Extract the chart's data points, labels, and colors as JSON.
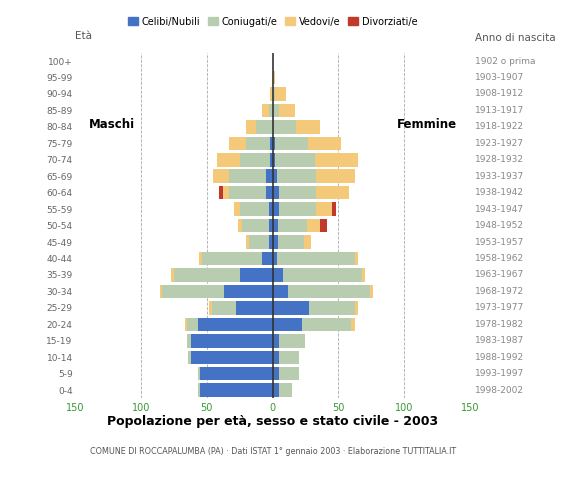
{
  "age_groups": [
    "0-4",
    "5-9",
    "10-14",
    "15-19",
    "20-24",
    "25-29",
    "30-34",
    "35-39",
    "40-44",
    "45-49",
    "50-54",
    "55-59",
    "60-64",
    "65-69",
    "70-74",
    "75-79",
    "80-84",
    "85-89",
    "90-94",
    "95-99",
    "100+"
  ],
  "birth_years": [
    "1998-2002",
    "1993-1997",
    "1988-1992",
    "1983-1987",
    "1978-1982",
    "1973-1977",
    "1968-1972",
    "1963-1967",
    "1958-1962",
    "1953-1957",
    "1948-1952",
    "1943-1947",
    "1938-1942",
    "1933-1937",
    "1928-1932",
    "1923-1927",
    "1918-1922",
    "1913-1917",
    "1908-1912",
    "1903-1907",
    "1902 o prima"
  ],
  "males": {
    "celibi": [
      55,
      55,
      62,
      62,
      57,
      28,
      37,
      25,
      8,
      3,
      3,
      3,
      5,
      5,
      2,
      2,
      0,
      0,
      0,
      0,
      0
    ],
    "coniugati": [
      2,
      2,
      2,
      3,
      8,
      18,
      47,
      50,
      46,
      15,
      20,
      22,
      28,
      28,
      23,
      18,
      13,
      3,
      0,
      0,
      0
    ],
    "vedovi": [
      0,
      0,
      0,
      0,
      2,
      2,
      2,
      2,
      2,
      2,
      3,
      4,
      5,
      12,
      17,
      13,
      7,
      5,
      2,
      0,
      0
    ],
    "divorziati": [
      0,
      0,
      0,
      0,
      0,
      0,
      0,
      0,
      0,
      0,
      0,
      0,
      3,
      0,
      0,
      0,
      0,
      0,
      0,
      0,
      0
    ]
  },
  "females": {
    "nubili": [
      5,
      5,
      5,
      5,
      22,
      28,
      12,
      8,
      3,
      4,
      4,
      5,
      5,
      3,
      2,
      2,
      0,
      0,
      0,
      0,
      0
    ],
    "coniugate": [
      10,
      15,
      15,
      20,
      38,
      35,
      62,
      60,
      60,
      20,
      22,
      28,
      28,
      30,
      30,
      25,
      18,
      5,
      2,
      0,
      0
    ],
    "vedove": [
      0,
      0,
      0,
      0,
      3,
      2,
      2,
      2,
      2,
      5,
      10,
      12,
      25,
      30,
      33,
      25,
      18,
      12,
      8,
      2,
      0
    ],
    "divorziate": [
      0,
      0,
      0,
      0,
      0,
      0,
      0,
      0,
      0,
      0,
      5,
      3,
      0,
      0,
      0,
      0,
      0,
      0,
      0,
      0,
      0
    ]
  },
  "colors": {
    "celibi_nubili": "#4472C4",
    "coniugati_e": "#B8CCB0",
    "vedovi_e": "#F5C97A",
    "divorziati_e": "#C0392B"
  },
  "title": "Popolazione per età, sesso e stato civile - 2003",
  "subtitle": "COMUNE DI ROCCAPALUMBA (PA) · Dati ISTAT 1° gennaio 2003 · Elaborazione TUTTITALIA.IT",
  "xlabel_left": "Maschi",
  "xlabel_right": "Femmine",
  "ylabel_left": "Età",
  "ylabel_right": "Anno di nascita",
  "xlim": 150,
  "background_color": "#ffffff",
  "legend_labels": [
    "Celibi/Nubili",
    "Coniugati/e",
    "Vedovi/e",
    "Divorziati/e"
  ]
}
